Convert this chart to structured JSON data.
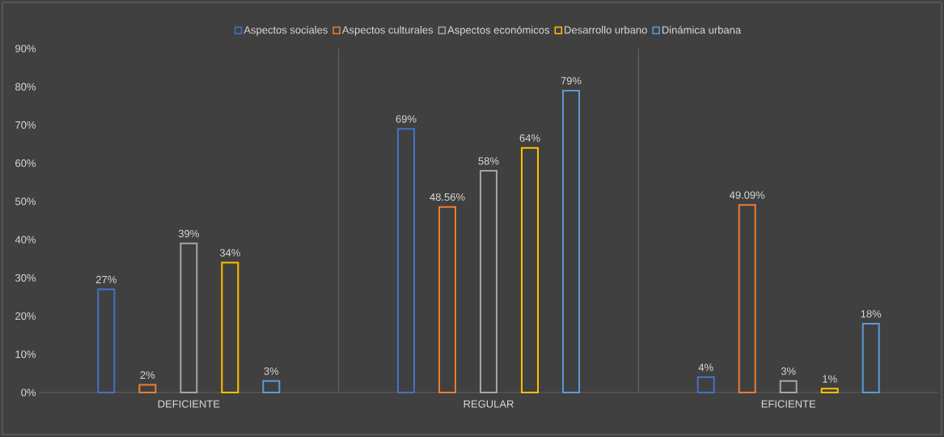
{
  "chart_data": {
    "type": "bar",
    "categories": [
      "DEFICIENTE",
      "REGULAR",
      "EFICIENTE"
    ],
    "series": [
      {
        "name": "Aspectos sociales",
        "color": "#4472c4",
        "values": [
          27,
          69,
          4
        ],
        "value_labels": [
          "27%",
          "69%",
          "4%"
        ]
      },
      {
        "name": "Aspectos culturales",
        "color": "#ed7d31",
        "values": [
          2,
          48.56,
          49.09
        ],
        "value_labels": [
          "2%",
          "48.56%",
          "49.09%"
        ]
      },
      {
        "name": "Aspectos económicos",
        "color": "#a5a5a5",
        "values": [
          39,
          58,
          3
        ],
        "value_labels": [
          "39%",
          "58%",
          "3%"
        ]
      },
      {
        "name": "Desarrollo urbano",
        "color": "#ffc000",
        "values": [
          34,
          64,
          1
        ],
        "value_labels": [
          "34%",
          "64%",
          "1%"
        ]
      },
      {
        "name": "Dinámica urbana",
        "color": "#5b9bd5",
        "values": [
          3,
          79,
          18
        ],
        "value_labels": [
          "3%",
          "79%",
          "18%"
        ]
      }
    ],
    "ylim": [
      0,
      90
    ],
    "yticks": [
      {
        "value": 0,
        "label": "0%"
      },
      {
        "value": 10,
        "label": "10%"
      },
      {
        "value": 20,
        "label": "20%"
      },
      {
        "value": 30,
        "label": "30%"
      },
      {
        "value": 40,
        "label": "40%"
      },
      {
        "value": 50,
        "label": "50%"
      },
      {
        "value": 60,
        "label": "60%"
      },
      {
        "value": 70,
        "label": "70%"
      },
      {
        "value": 80,
        "label": "80%"
      },
      {
        "value": 90,
        "label": "90%"
      }
    ],
    "grid": "x",
    "legend": "top"
  }
}
